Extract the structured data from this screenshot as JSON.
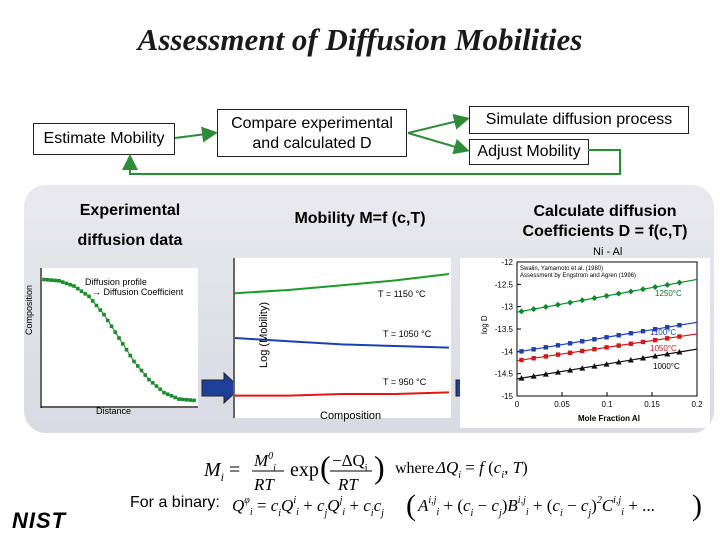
{
  "title": "Assessment of Diffusion Mobilities",
  "flow": {
    "estimate": "Estimate Mobility",
    "compare_line1": "Compare experimental",
    "compare_line2": "and calculated D",
    "simulate": "Simulate diffusion process",
    "adjust": "Adjust Mobility"
  },
  "panel": {
    "experimental_line1": "Experimental",
    "experimental_line2": "diffusion data",
    "mobility": "Mobility  M=f (c,T)",
    "calc_line1": "Calculate diffusion",
    "calc_line2": "Coefficients D = f(c,T)"
  },
  "plot1": {
    "ylabel": "Composition",
    "xlabel": "Distance",
    "legend1": "Diffusion profile",
    "legend2": "→ Diffusion Coefficient"
  },
  "plot2": {
    "ylabel": "Log (Mobility)",
    "xlabel": "Composition",
    "labels": [
      "T = 1150 °C",
      "T = 1050 °C",
      "T = 950 °C"
    ]
  },
  "plot3": {
    "title": "Ni - Al",
    "xlabel": "Mole Fraction Al",
    "ylabel": "log D",
    "yticks": [
      "-12",
      "-12.5",
      "-13",
      "-13.5",
      "-14",
      "-14.5",
      "-15"
    ],
    "xticks": [
      "0",
      "0.05",
      "0.1",
      "0.15",
      "0.2"
    ],
    "legend1": "Swalin, Yamamoto et al. (1980)",
    "legend2": "Assessment by Engstrom and Agren (1996)",
    "temps": [
      "1250°C",
      "1100°C",
      "1050°C",
      "1000°C"
    ]
  },
  "formula": {
    "binary_label": "For a binary:",
    "whereas": "where"
  },
  "logo": "NIST",
  "chart_data": [
    {
      "type": "line",
      "title": "Diffusion profile",
      "xlabel": "Distance",
      "ylabel": "Composition",
      "x": [
        0,
        1,
        2,
        3,
        4,
        5,
        6,
        7,
        8,
        9,
        10
      ],
      "series": [
        {
          "name": "Diffusion profile",
          "values": [
            0.95,
            0.94,
            0.9,
            0.82,
            0.68,
            0.5,
            0.32,
            0.18,
            0.08,
            0.03,
            0.02
          ]
        }
      ]
    },
    {
      "type": "line",
      "title": "",
      "xlabel": "Composition",
      "ylabel": "Log (Mobility)",
      "x": [
        0,
        0.25,
        0.5,
        0.75,
        1
      ],
      "series": [
        {
          "name": "T = 1150 °C",
          "values": [
            0.78,
            0.8,
            0.83,
            0.86,
            0.9
          ]
        },
        {
          "name": "T = 1050 °C",
          "values": [
            0.5,
            0.48,
            0.46,
            0.45,
            0.44
          ]
        },
        {
          "name": "T = 950 °C",
          "values": [
            0.14,
            0.14,
            0.15,
            0.15,
            0.16
          ]
        }
      ]
    },
    {
      "type": "scatter",
      "title": "Ni - Al",
      "xlabel": "Mole Fraction Al",
      "ylabel": "log D",
      "xlim": [
        0,
        0.2
      ],
      "ylim": [
        -15,
        -12
      ],
      "series": [
        {
          "name": "1250°C",
          "x": [
            0.02,
            0.05,
            0.08,
            0.11,
            0.14,
            0.17
          ],
          "values": [
            -13.05,
            -12.95,
            -12.85,
            -12.75,
            -12.6,
            -12.5
          ]
        },
        {
          "name": "1100°C",
          "x": [
            0.02,
            0.05,
            0.08,
            0.11,
            0.14,
            0.17
          ],
          "values": [
            -13.95,
            -13.85,
            -13.75,
            -13.65,
            -13.55,
            -13.45
          ]
        },
        {
          "name": "1050°C",
          "x": [
            0.02,
            0.05,
            0.08,
            0.11,
            0.14,
            0.17
          ],
          "values": [
            -14.15,
            -14.05,
            -13.95,
            -13.85,
            -13.75,
            -13.7
          ]
        },
        {
          "name": "1000°C",
          "x": [
            0.02,
            0.05,
            0.08,
            0.11,
            0.14,
            0.17
          ],
          "values": [
            -14.55,
            -14.45,
            -14.35,
            -14.25,
            -14.15,
            -14.05
          ]
        }
      ]
    }
  ]
}
